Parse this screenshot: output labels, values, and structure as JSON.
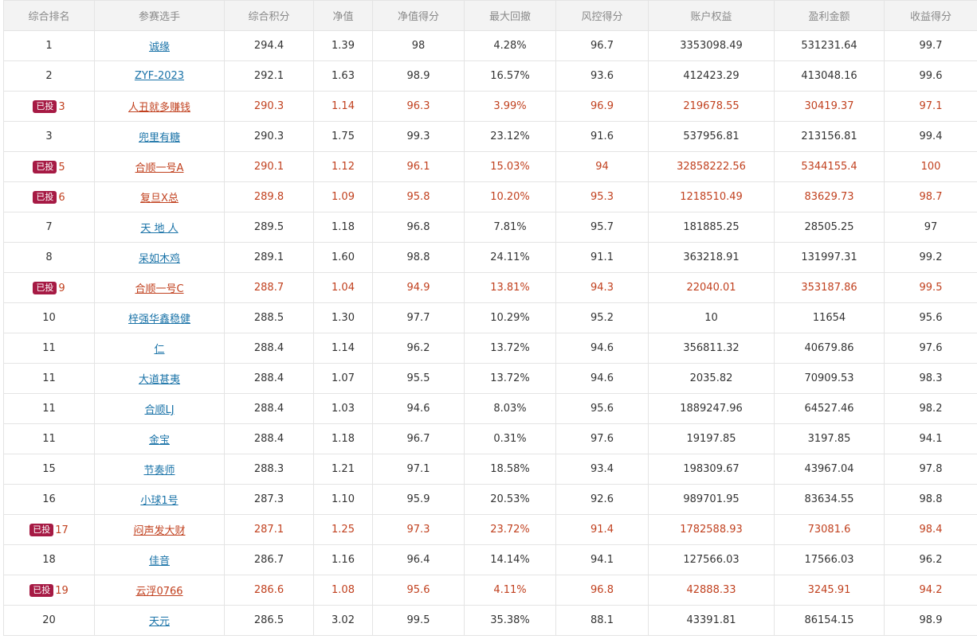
{
  "columns": [
    "综合排名",
    "参赛选手",
    "综合积分",
    "净值",
    "净值得分",
    "最大回撤",
    "风控得分",
    "账户权益",
    "盈利金额",
    "收益得分"
  ],
  "badge_label": "已投",
  "rows": [
    {
      "rank": "1",
      "name": "诚缘",
      "score": "294.4",
      "nav": "1.39",
      "nav_score": "98",
      "drawdown": "4.28%",
      "risk_score": "96.7",
      "equity": "3353098.49",
      "profit": "531231.64",
      "return_score": "99.7",
      "invested": false
    },
    {
      "rank": "2",
      "name": "ZYF-2023",
      "score": "292.1",
      "nav": "1.63",
      "nav_score": "98.9",
      "drawdown": "16.57%",
      "risk_score": "93.6",
      "equity": "412423.29",
      "profit": "413048.16",
      "return_score": "99.6",
      "invested": false
    },
    {
      "rank": "3",
      "name": "人丑就多赚钱",
      "score": "290.3",
      "nav": "1.14",
      "nav_score": "96.3",
      "drawdown": "3.99%",
      "risk_score": "96.9",
      "equity": "219678.55",
      "profit": "30419.37",
      "return_score": "97.1",
      "invested": true
    },
    {
      "rank": "3",
      "name": "兜里有糖",
      "score": "290.3",
      "nav": "1.75",
      "nav_score": "99.3",
      "drawdown": "23.12%",
      "risk_score": "91.6",
      "equity": "537956.81",
      "profit": "213156.81",
      "return_score": "99.4",
      "invested": false
    },
    {
      "rank": "5",
      "name": "合顺一号A",
      "score": "290.1",
      "nav": "1.12",
      "nav_score": "96.1",
      "drawdown": "15.03%",
      "risk_score": "94",
      "equity": "32858222.56",
      "profit": "5344155.4",
      "return_score": "100",
      "invested": true
    },
    {
      "rank": "6",
      "name": "复旦X总",
      "score": "289.8",
      "nav": "1.09",
      "nav_score": "95.8",
      "drawdown": "10.20%",
      "risk_score": "95.3",
      "equity": "1218510.49",
      "profit": "83629.73",
      "return_score": "98.7",
      "invested": true
    },
    {
      "rank": "7",
      "name": "天 地 人",
      "score": "289.5",
      "nav": "1.18",
      "nav_score": "96.8",
      "drawdown": "7.81%",
      "risk_score": "95.7",
      "equity": "181885.25",
      "profit": "28505.25",
      "return_score": "97",
      "invested": false
    },
    {
      "rank": "8",
      "name": "呆如木鸡",
      "score": "289.1",
      "nav": "1.60",
      "nav_score": "98.8",
      "drawdown": "24.11%",
      "risk_score": "91.1",
      "equity": "363218.91",
      "profit": "131997.31",
      "return_score": "99.2",
      "invested": false
    },
    {
      "rank": "9",
      "name": "合顺一号C",
      "score": "288.7",
      "nav": "1.04",
      "nav_score": "94.9",
      "drawdown": "13.81%",
      "risk_score": "94.3",
      "equity": "22040.01",
      "profit": "353187.86",
      "return_score": "99.5",
      "invested": true
    },
    {
      "rank": "10",
      "name": "梓强华鑫稳健",
      "score": "288.5",
      "nav": "1.30",
      "nav_score": "97.7",
      "drawdown": "10.29%",
      "risk_score": "95.2",
      "equity": "10",
      "profit": "11654",
      "return_score": "95.6",
      "invested": false
    },
    {
      "rank": "11",
      "name": "仁",
      "score": "288.4",
      "nav": "1.14",
      "nav_score": "96.2",
      "drawdown": "13.72%",
      "risk_score": "94.6",
      "equity": "356811.32",
      "profit": "40679.86",
      "return_score": "97.6",
      "invested": false
    },
    {
      "rank": "11",
      "name": "大道甚夷",
      "score": "288.4",
      "nav": "1.07",
      "nav_score": "95.5",
      "drawdown": "13.72%",
      "risk_score": "94.6",
      "equity": "2035.82",
      "profit": "70909.53",
      "return_score": "98.3",
      "invested": false
    },
    {
      "rank": "11",
      "name": "合顺LJ",
      "score": "288.4",
      "nav": "1.03",
      "nav_score": "94.6",
      "drawdown": "8.03%",
      "risk_score": "95.6",
      "equity": "1889247.96",
      "profit": "64527.46",
      "return_score": "98.2",
      "invested": false
    },
    {
      "rank": "11",
      "name": "金宝",
      "score": "288.4",
      "nav": "1.18",
      "nav_score": "96.7",
      "drawdown": "0.31%",
      "risk_score": "97.6",
      "equity": "19197.85",
      "profit": "3197.85",
      "return_score": "94.1",
      "invested": false
    },
    {
      "rank": "15",
      "name": "节奏师",
      "score": "288.3",
      "nav": "1.21",
      "nav_score": "97.1",
      "drawdown": "18.58%",
      "risk_score": "93.4",
      "equity": "198309.67",
      "profit": "43967.04",
      "return_score": "97.8",
      "invested": false
    },
    {
      "rank": "16",
      "name": "小球1号",
      "score": "287.3",
      "nav": "1.10",
      "nav_score": "95.9",
      "drawdown": "20.53%",
      "risk_score": "92.6",
      "equity": "989701.95",
      "profit": "83634.55",
      "return_score": "98.8",
      "invested": false
    },
    {
      "rank": "17",
      "name": "闷声发大财",
      "score": "287.1",
      "nav": "1.25",
      "nav_score": "97.3",
      "drawdown": "23.72%",
      "risk_score": "91.4",
      "equity": "1782588.93",
      "profit": "73081.6",
      "return_score": "98.4",
      "invested": true
    },
    {
      "rank": "18",
      "name": "佳音",
      "score": "286.7",
      "nav": "1.16",
      "nav_score": "96.4",
      "drawdown": "14.14%",
      "risk_score": "94.1",
      "equity": "127566.03",
      "profit": "17566.03",
      "return_score": "96.2",
      "invested": false
    },
    {
      "rank": "19",
      "name": "云浮0766",
      "score": "286.6",
      "nav": "1.08",
      "nav_score": "95.6",
      "drawdown": "4.11%",
      "risk_score": "96.8",
      "equity": "42888.33",
      "profit": "3245.91",
      "return_score": "94.2",
      "invested": true
    },
    {
      "rank": "20",
      "name": "天元",
      "score": "286.5",
      "nav": "3.02",
      "nav_score": "99.5",
      "drawdown": "35.38%",
      "risk_score": "88.1",
      "equity": "43391.81",
      "profit": "86154.15",
      "return_score": "98.9",
      "invested": false
    }
  ]
}
